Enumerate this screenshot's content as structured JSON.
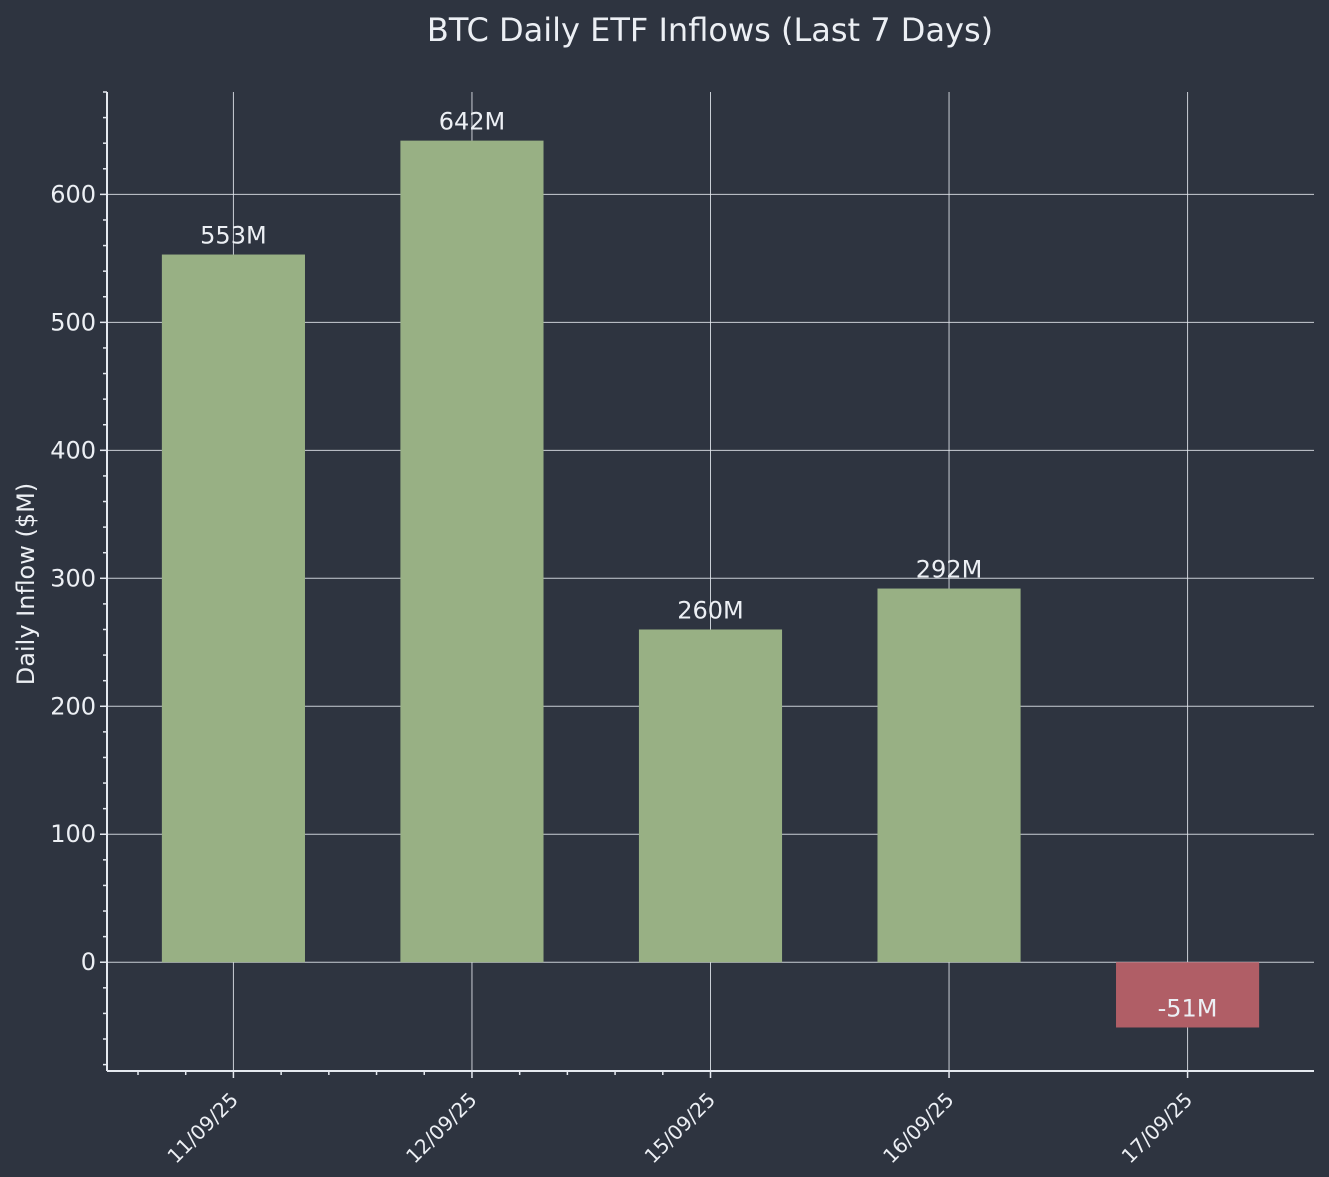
{
  "chart_data": {
    "type": "bar",
    "title": "BTC Daily ETF Inflows (Last 7 Days)",
    "xlabel": "",
    "ylabel": "Daily Inflow ($M)",
    "categories": [
      "11/09/25",
      "12/09/25",
      "15/09/25",
      "16/09/25",
      "17/09/25"
    ],
    "values": [
      553,
      642,
      260,
      292,
      -51
    ],
    "data_labels": [
      "553M",
      "642M",
      "260M",
      "292M",
      "-51M"
    ],
    "ylim": [
      -85,
      680
    ],
    "yticks": [
      0,
      100,
      200,
      300,
      400,
      500,
      600
    ],
    "grid": true,
    "colors": {
      "positive": "#98b084",
      "negative": "#b05e66",
      "background": "#2e3440",
      "text": "#eceff4"
    }
  }
}
